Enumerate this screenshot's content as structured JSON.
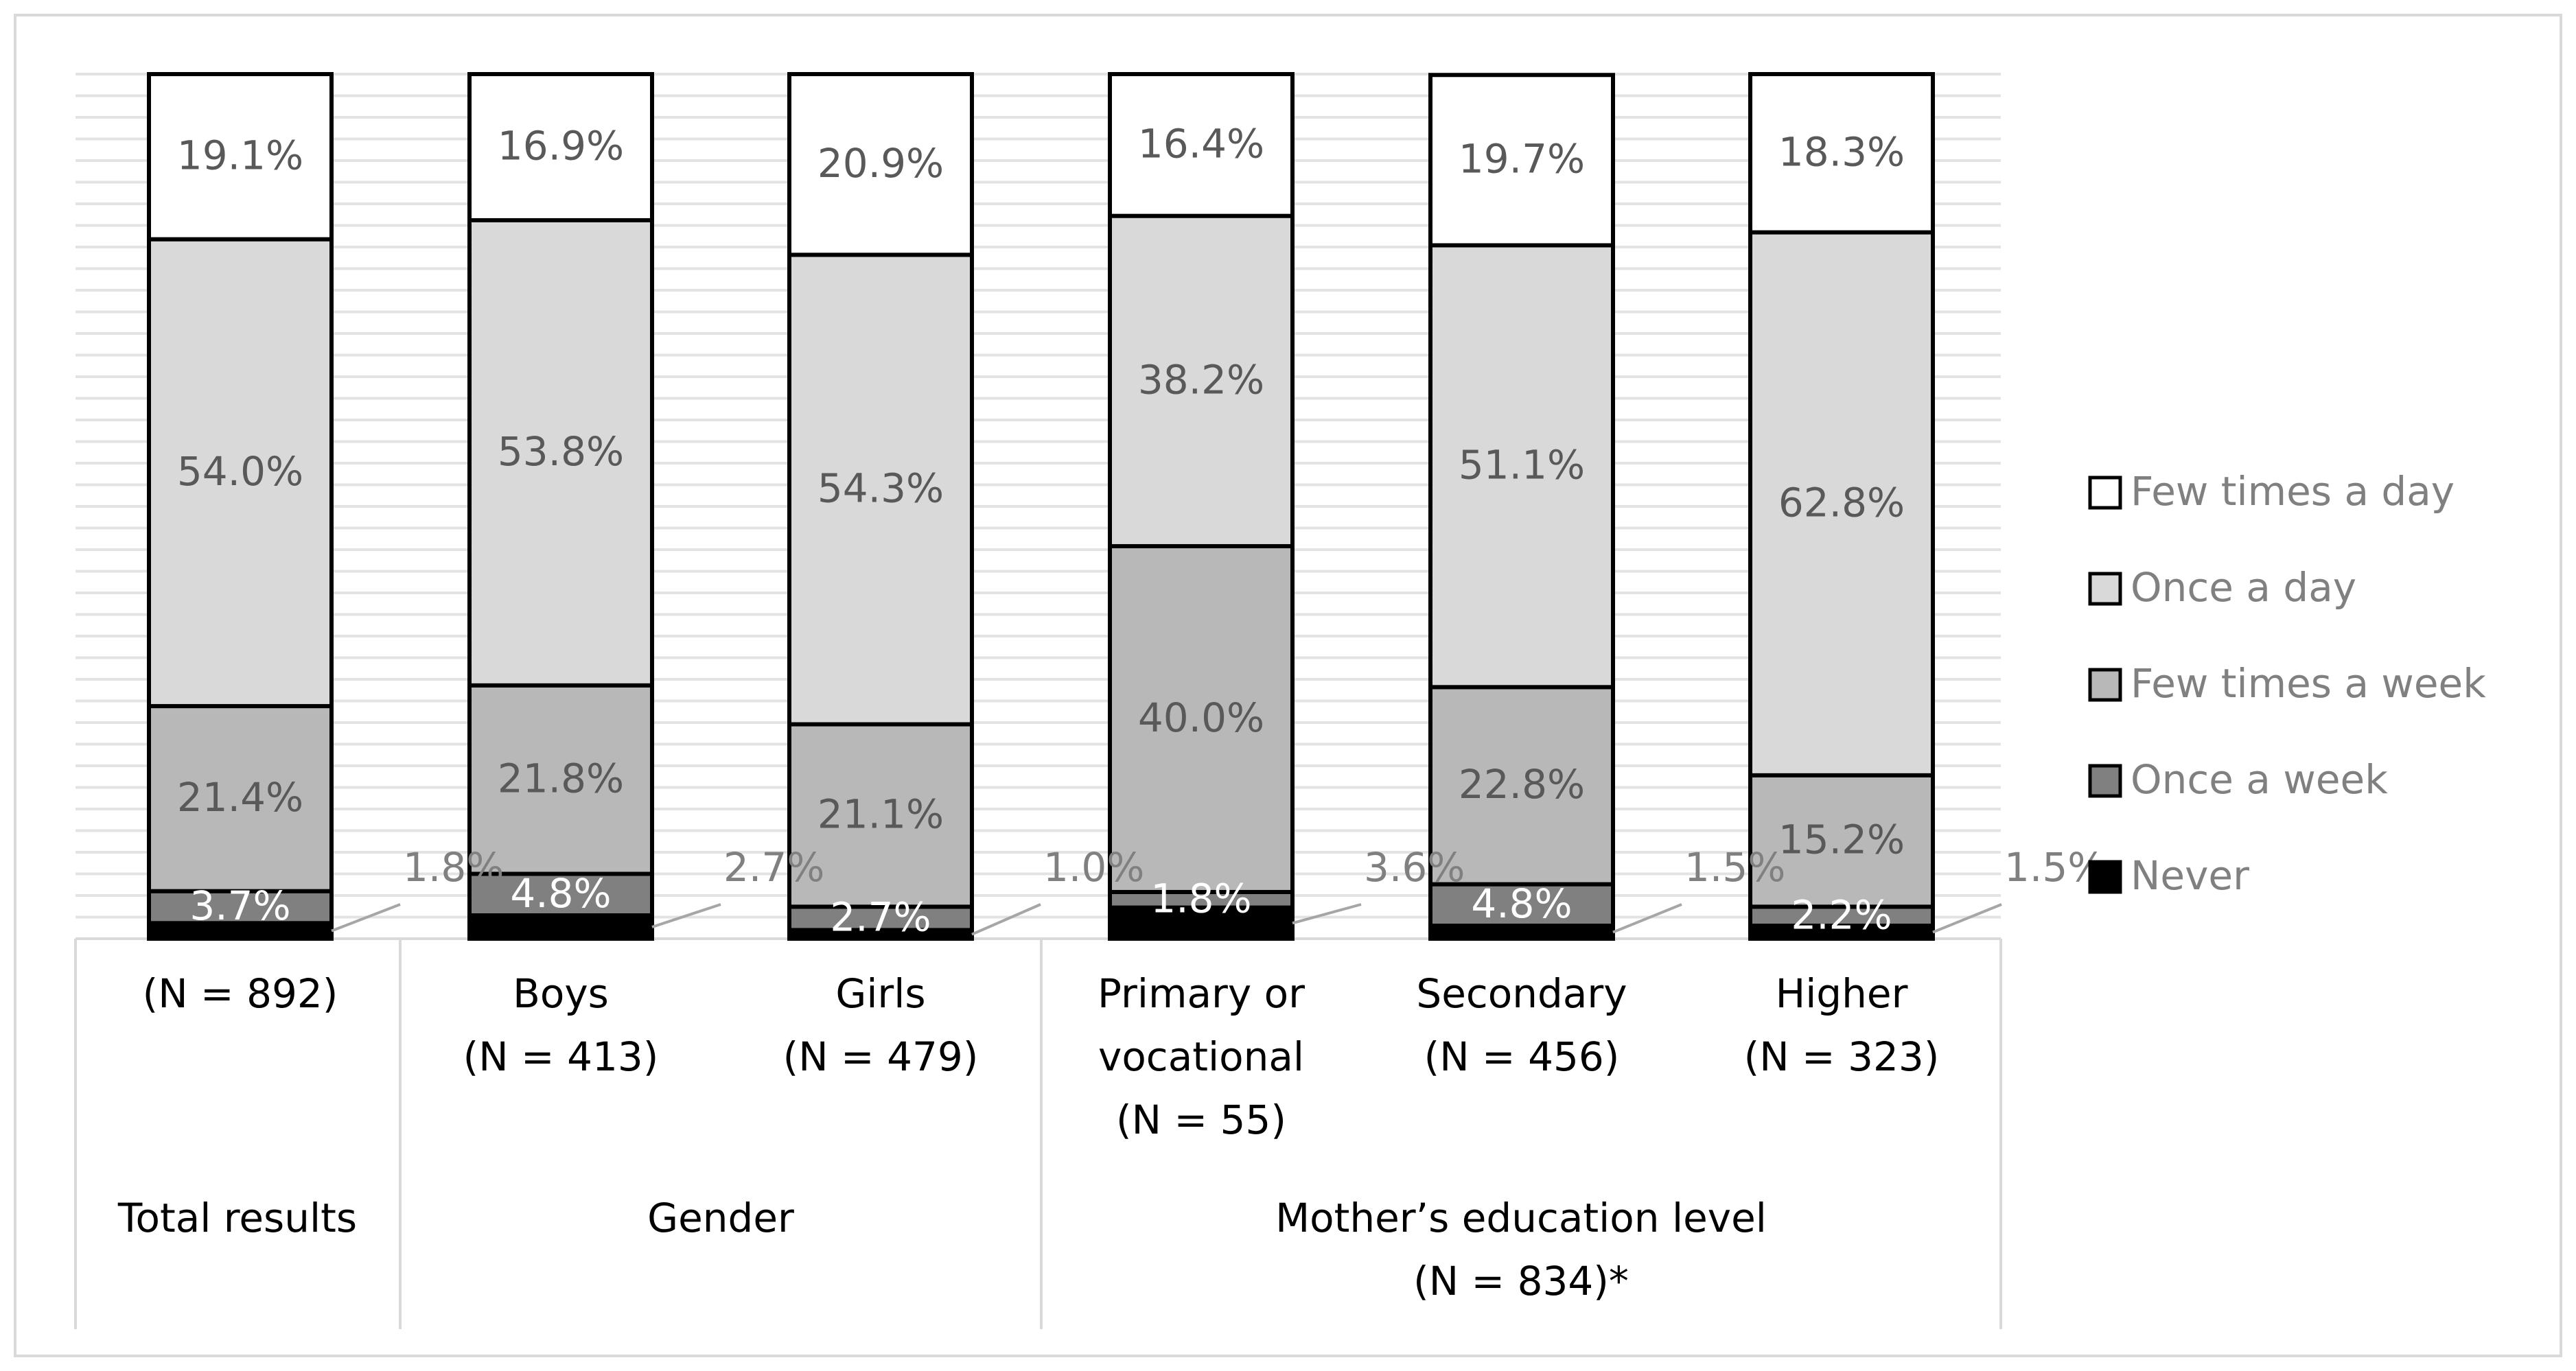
{
  "chart_data": {
    "type": "bar",
    "stacked": true,
    "normalized": true,
    "grid": true,
    "ylim": [
      0,
      100
    ],
    "legend_position": "right",
    "categories": [
      {
        "label_lines": [
          "(N = 892)"
        ]
      },
      {
        "label_lines": [
          "Boys",
          "(N = 413)"
        ]
      },
      {
        "label_lines": [
          "Girls",
          "(N = 479)"
        ]
      },
      {
        "label_lines": [
          "Primary or",
          "vocational",
          "(N = 55)"
        ]
      },
      {
        "label_lines": [
          "Secondary",
          "(N = 456)"
        ]
      },
      {
        "label_lines": [
          "Higher",
          "(N = 323)"
        ]
      }
    ],
    "groups": [
      {
        "label_lines": [
          "Total results"
        ],
        "categories": [
          0
        ]
      },
      {
        "label_lines": [
          "Gender"
        ],
        "categories": [
          1,
          2
        ]
      },
      {
        "label_lines": [
          "Mother’s education level",
          "(N = 834)*"
        ],
        "categories": [
          3,
          4,
          5
        ]
      }
    ],
    "series": [
      {
        "name": "Never",
        "color": "#000000",
        "values": [
          1.8,
          2.7,
          1.0,
          3.6,
          1.5,
          1.5
        ],
        "labels": [
          "1.8%",
          "2.7%",
          "1.0%",
          "3.6%",
          "1.5%",
          "1.5%"
        ]
      },
      {
        "name": "Once a week",
        "color": "#808080",
        "values": [
          3.7,
          4.8,
          2.7,
          1.8,
          4.8,
          2.2
        ],
        "labels": [
          "3.7%",
          "4.8%",
          "2.7%",
          "1.8%",
          "4.8%",
          "2.2%"
        ]
      },
      {
        "name": "Few times a week",
        "color": "#b8b8b8",
        "values": [
          21.4,
          21.8,
          21.1,
          40.0,
          22.8,
          15.2
        ],
        "labels": [
          "21.4%",
          "21.8%",
          "21.1%",
          "40.0%",
          "22.8%",
          "15.2%"
        ]
      },
      {
        "name": "Once a day",
        "color": "#d9d9d9",
        "values": [
          54.0,
          53.8,
          54.3,
          38.2,
          51.1,
          62.8
        ],
        "labels": [
          "54.0%",
          "53.8%",
          "54.3%",
          "38.2%",
          "51.1%",
          "62.8%"
        ]
      },
      {
        "name": "Few times a day",
        "color": "#ffffff",
        "values": [
          19.1,
          16.9,
          20.9,
          16.4,
          19.7,
          18.3
        ],
        "labels": [
          "19.1%",
          "16.9%",
          "20.9%",
          "16.4%",
          "19.7%",
          "18.3%"
        ]
      }
    ],
    "legend_order": [
      "Few times a day",
      "Once a day",
      "Few times a week",
      "Once a week",
      "Never"
    ],
    "title": "",
    "xlabel": "",
    "ylabel": ""
  }
}
